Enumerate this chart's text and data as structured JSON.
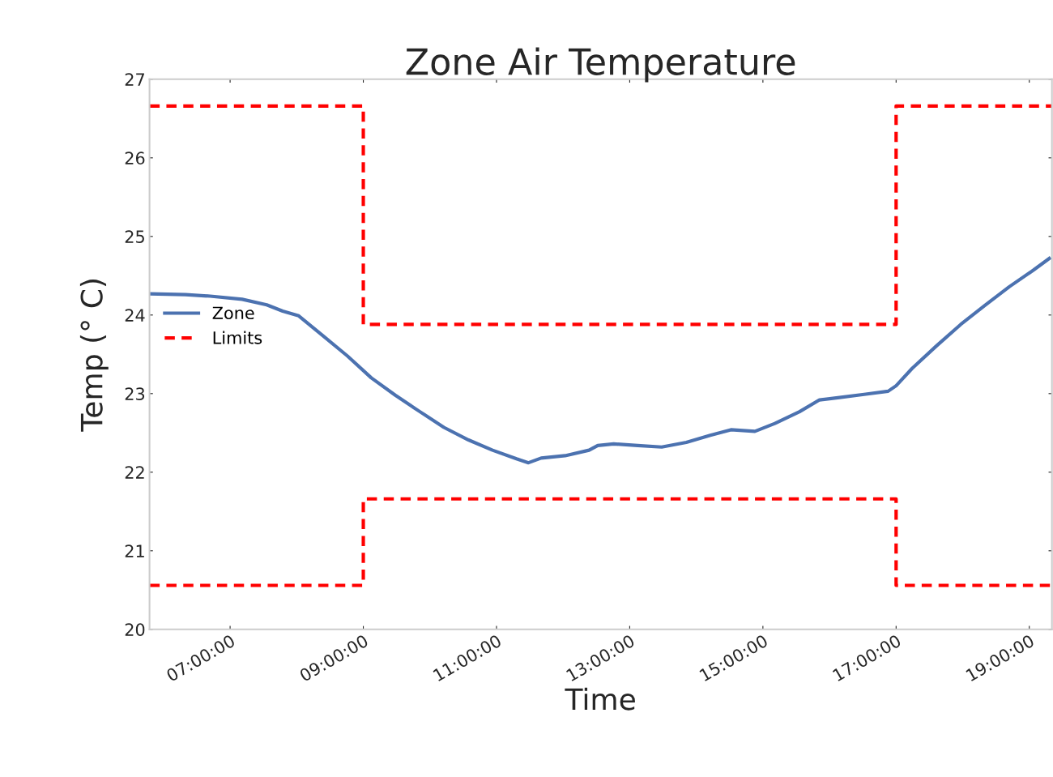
{
  "chart_data": {
    "type": "line",
    "title": "Zone Air Temperature",
    "xlabel": "Time",
    "ylabel": "Temp (° C)",
    "xlim": [
      5.79,
      19.34
    ],
    "ylim": [
      20,
      27
    ],
    "yticks": [
      20,
      21,
      22,
      23,
      24,
      25,
      26,
      27
    ],
    "xticks": [
      {
        "value": 7,
        "label": "07:00:00"
      },
      {
        "value": 9,
        "label": "09:00:00"
      },
      {
        "value": 11,
        "label": "11:00:00"
      },
      {
        "value": 13,
        "label": "13:00:00"
      },
      {
        "value": 15,
        "label": "15:00:00"
      },
      {
        "value": 17,
        "label": "17:00:00"
      },
      {
        "value": 19,
        "label": "19:00:00"
      }
    ],
    "grid": false,
    "legend": "left",
    "series": [
      {
        "name": "Zone",
        "color": "#4c72b0",
        "line_style": "solid",
        "x": [
          5.79,
          6.33,
          6.7,
          7.18,
          7.55,
          7.79,
          8.03,
          8.39,
          8.76,
          9.12,
          9.48,
          9.85,
          10.21,
          10.58,
          10.94,
          11.3,
          11.48,
          11.67,
          12.03,
          12.39,
          12.52,
          12.76,
          13.12,
          13.48,
          13.85,
          14.21,
          14.52,
          14.88,
          15.18,
          15.55,
          15.85,
          16.15,
          16.52,
          16.88,
          17.0,
          17.24,
          17.61,
          17.97,
          18.33,
          18.7,
          19.06,
          19.3
        ],
        "values": [
          24.27,
          24.26,
          24.24,
          24.2,
          24.13,
          24.05,
          23.99,
          23.74,
          23.48,
          23.2,
          22.98,
          22.77,
          22.57,
          22.41,
          22.28,
          22.17,
          22.12,
          22.18,
          22.21,
          22.28,
          22.34,
          22.36,
          22.34,
          22.32,
          22.38,
          22.47,
          22.54,
          22.52,
          22.62,
          22.77,
          22.92,
          22.95,
          22.99,
          23.03,
          23.1,
          23.32,
          23.61,
          23.88,
          24.12,
          24.36,
          24.57,
          24.72
        ]
      },
      {
        "name": "Limits",
        "type": "step",
        "color": "#ff0000",
        "line_style": "dashed",
        "x": [
          5.79,
          9,
          17,
          19.34
        ],
        "values": [
          26.66,
          23.88,
          26.66,
          26.66
        ]
      },
      {
        "type": "step",
        "color": "#ff0000",
        "line_style": "dashed",
        "x": [
          5.79,
          9,
          17,
          19.34
        ],
        "values": [
          20.56,
          21.66,
          20.56,
          20.56
        ]
      }
    ]
  }
}
